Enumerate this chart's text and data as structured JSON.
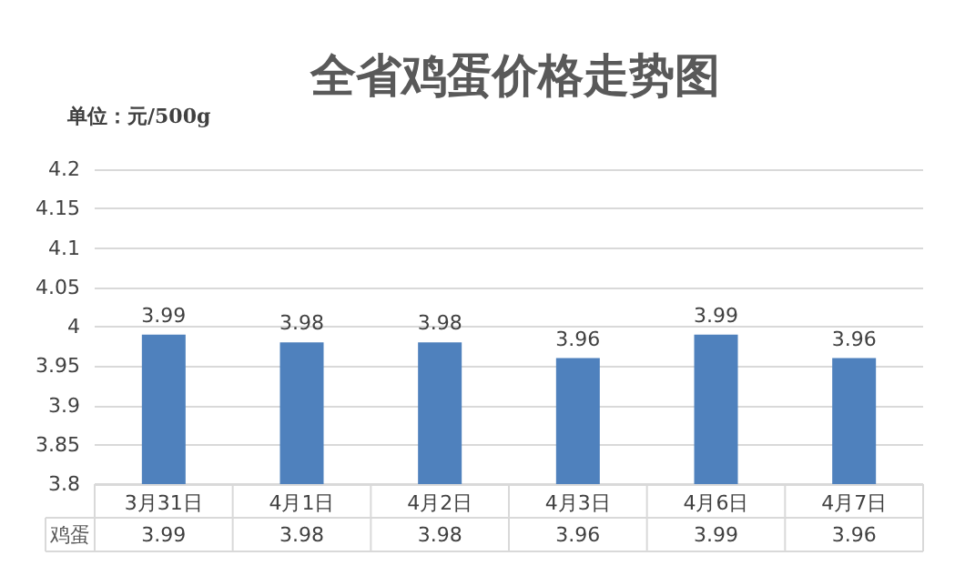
{
  "chart_data": {
    "type": "bar",
    "title": "全省鸡蛋价格走势图",
    "annotations": [
      "单位：元/500g",
      "3.99",
      "3.98",
      "3.98",
      "3.96",
      "3.99",
      "3.96"
    ],
    "categories": [
      "3月31日",
      "4月1日",
      "4月2日",
      "4月3日",
      "4月6日",
      "4月7日"
    ],
    "series": [
      {
        "name": "鸡蛋",
        "color": "#4f81bd",
        "values": [
          3.99,
          3.98,
          3.98,
          3.96,
          3.99,
          3.96
        ]
      }
    ],
    "ylim": [
      3.8,
      4.2
    ],
    "yticks": [
      3.8,
      3.85,
      3.9,
      3.95,
      4,
      4.05,
      4.1,
      4.15,
      4.2
    ],
    "grid": "y",
    "data_labels": true
  }
}
